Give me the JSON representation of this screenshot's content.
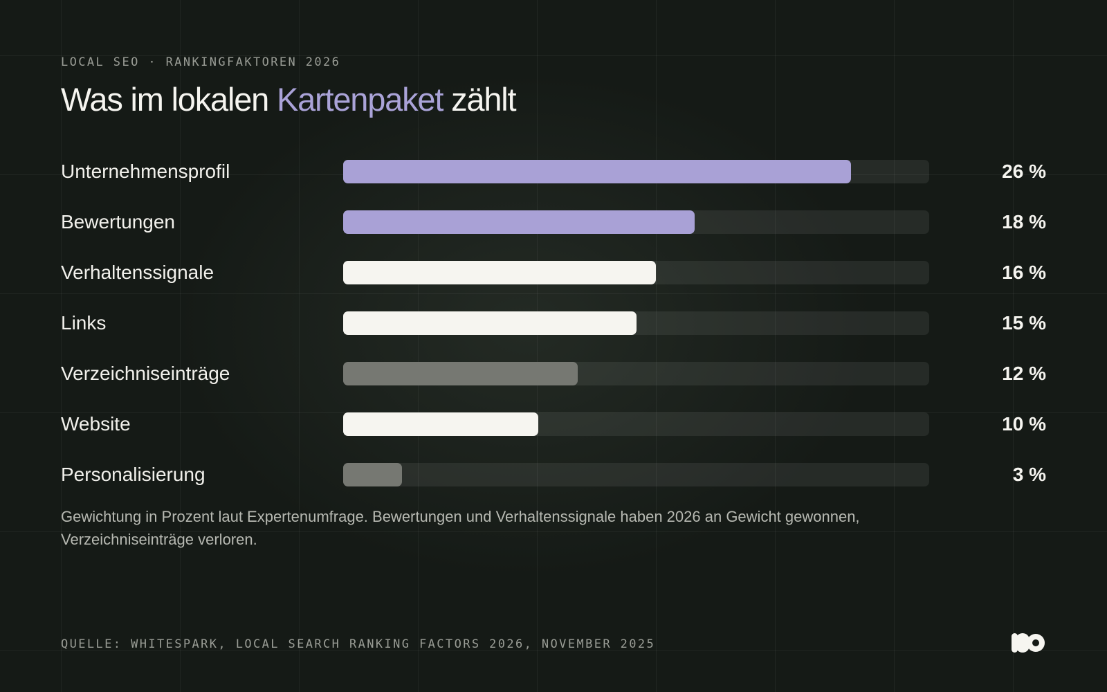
{
  "eyebrow": "LOCAL SEO · RANKINGFAKTOREN 2026",
  "title": {
    "before": "Was im lokalen ",
    "accent": "Kartenpaket",
    "after": " zählt"
  },
  "colors": {
    "accent": "#a9a1d6",
    "light": "#f6f5f0",
    "muted": "#767872",
    "track": "rgba(255,255,255,0.075)",
    "background": "#151a16"
  },
  "chart_data": {
    "type": "bar",
    "orientation": "horizontal",
    "categories": [
      "Unternehmensprofil",
      "Bewertungen",
      "Verhaltenssignale",
      "Links",
      "Verzeichniseinträge",
      "Website",
      "Personalisierung"
    ],
    "values": [
      26,
      18,
      16,
      15,
      12,
      10,
      3
    ],
    "value_labels": [
      "26 %",
      "18 %",
      "16 %",
      "15 %",
      "12 %",
      "10 %",
      "3 %"
    ],
    "bar_colors": [
      "accent",
      "accent",
      "light",
      "light",
      "muted",
      "light",
      "muted"
    ],
    "xlim": [
      0,
      30
    ],
    "unit": "%",
    "grid": false,
    "legend": "none"
  },
  "note": "Gewichtung in Prozent laut Expertenumfrage. Bewertungen und Verhaltenssignale haben 2026 an Gewicht gewonnen, Verzeichniseinträge verloren.",
  "source": "QUELLE: WHITESPARK, LOCAL SEARCH RANKING FACTORS 2026, NOVEMBER 2025",
  "logo": {
    "icon": "brand-logo-icon"
  }
}
